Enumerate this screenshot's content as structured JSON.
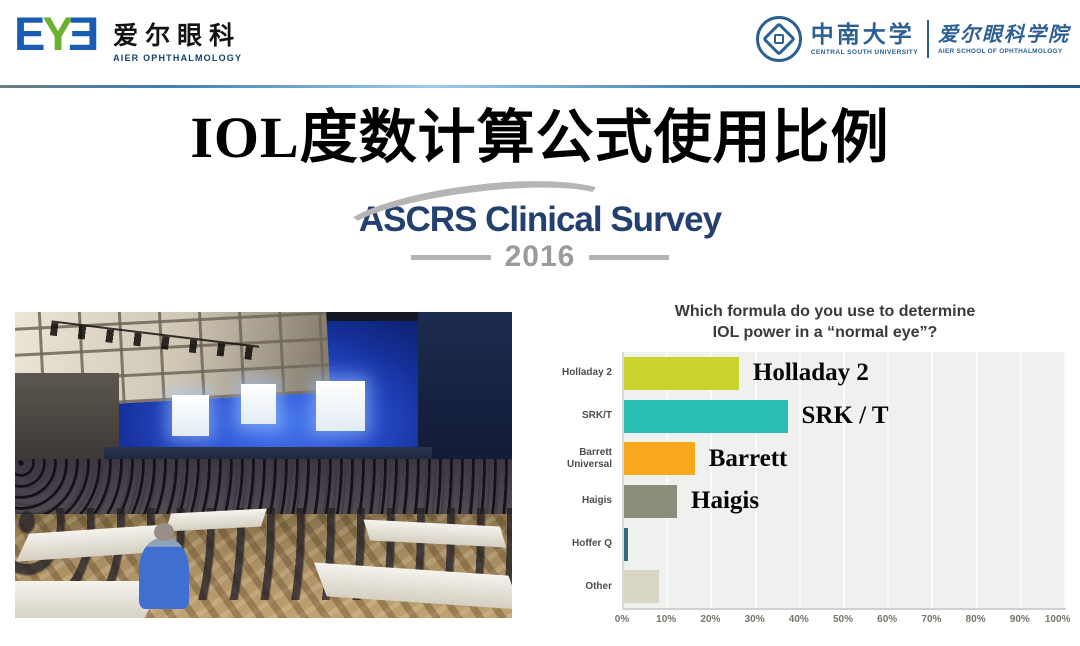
{
  "header": {
    "aier_logo": {
      "letters": [
        "E",
        "Y",
        "E"
      ],
      "cn": "爱尔眼科",
      "en": "AIER OPHTHALMOLOGY"
    },
    "csu_logo": {
      "university_cn": "中南大学",
      "university_en": "CENTRAL SOUTH UNIVERSITY",
      "school_cn": "爱尔眼科学院",
      "school_en": "AIER SCHOOL OF OPHTHALMOLOGY"
    }
  },
  "title": "IOL度数计算公式使用比例",
  "survey_logo": {
    "name": "ASCRS Clinical Survey",
    "year": "2016"
  },
  "chart_data": {
    "type": "bar",
    "orientation": "horizontal",
    "title_line1": "Which formula do you use to determine",
    "title_line2": "IOL power in a “normal eye”?",
    "xlim": [
      0,
      100
    ],
    "x_ticks": [
      "0%",
      "10%",
      "20%",
      "30%",
      "40%",
      "50%",
      "60%",
      "70%",
      "80%",
      "90%",
      "100%"
    ],
    "grid": true,
    "plot_bg": "#eff1ee",
    "rows": [
      {
        "label": "Holladay 2",
        "value": 26,
        "color": "#c9d32e",
        "overlay": "Holladay 2"
      },
      {
        "label": "SRK/T",
        "value": 37,
        "color": "#2abdb5",
        "overlay": "SRK / T"
      },
      {
        "label": "Barrett\nUniversal",
        "value": 16,
        "color": "#f7a81b",
        "overlay": "Barrett"
      },
      {
        "label": "Haigis",
        "value": 12,
        "color": "#8c8c7c",
        "overlay": "Haigis"
      },
      {
        "label": "Hoffer Q",
        "value": 1,
        "color": "#2b6b85",
        "overlay": ""
      },
      {
        "label": "Other",
        "value": 8,
        "color": "#d9d5c5",
        "overlay": ""
      }
    ]
  }
}
